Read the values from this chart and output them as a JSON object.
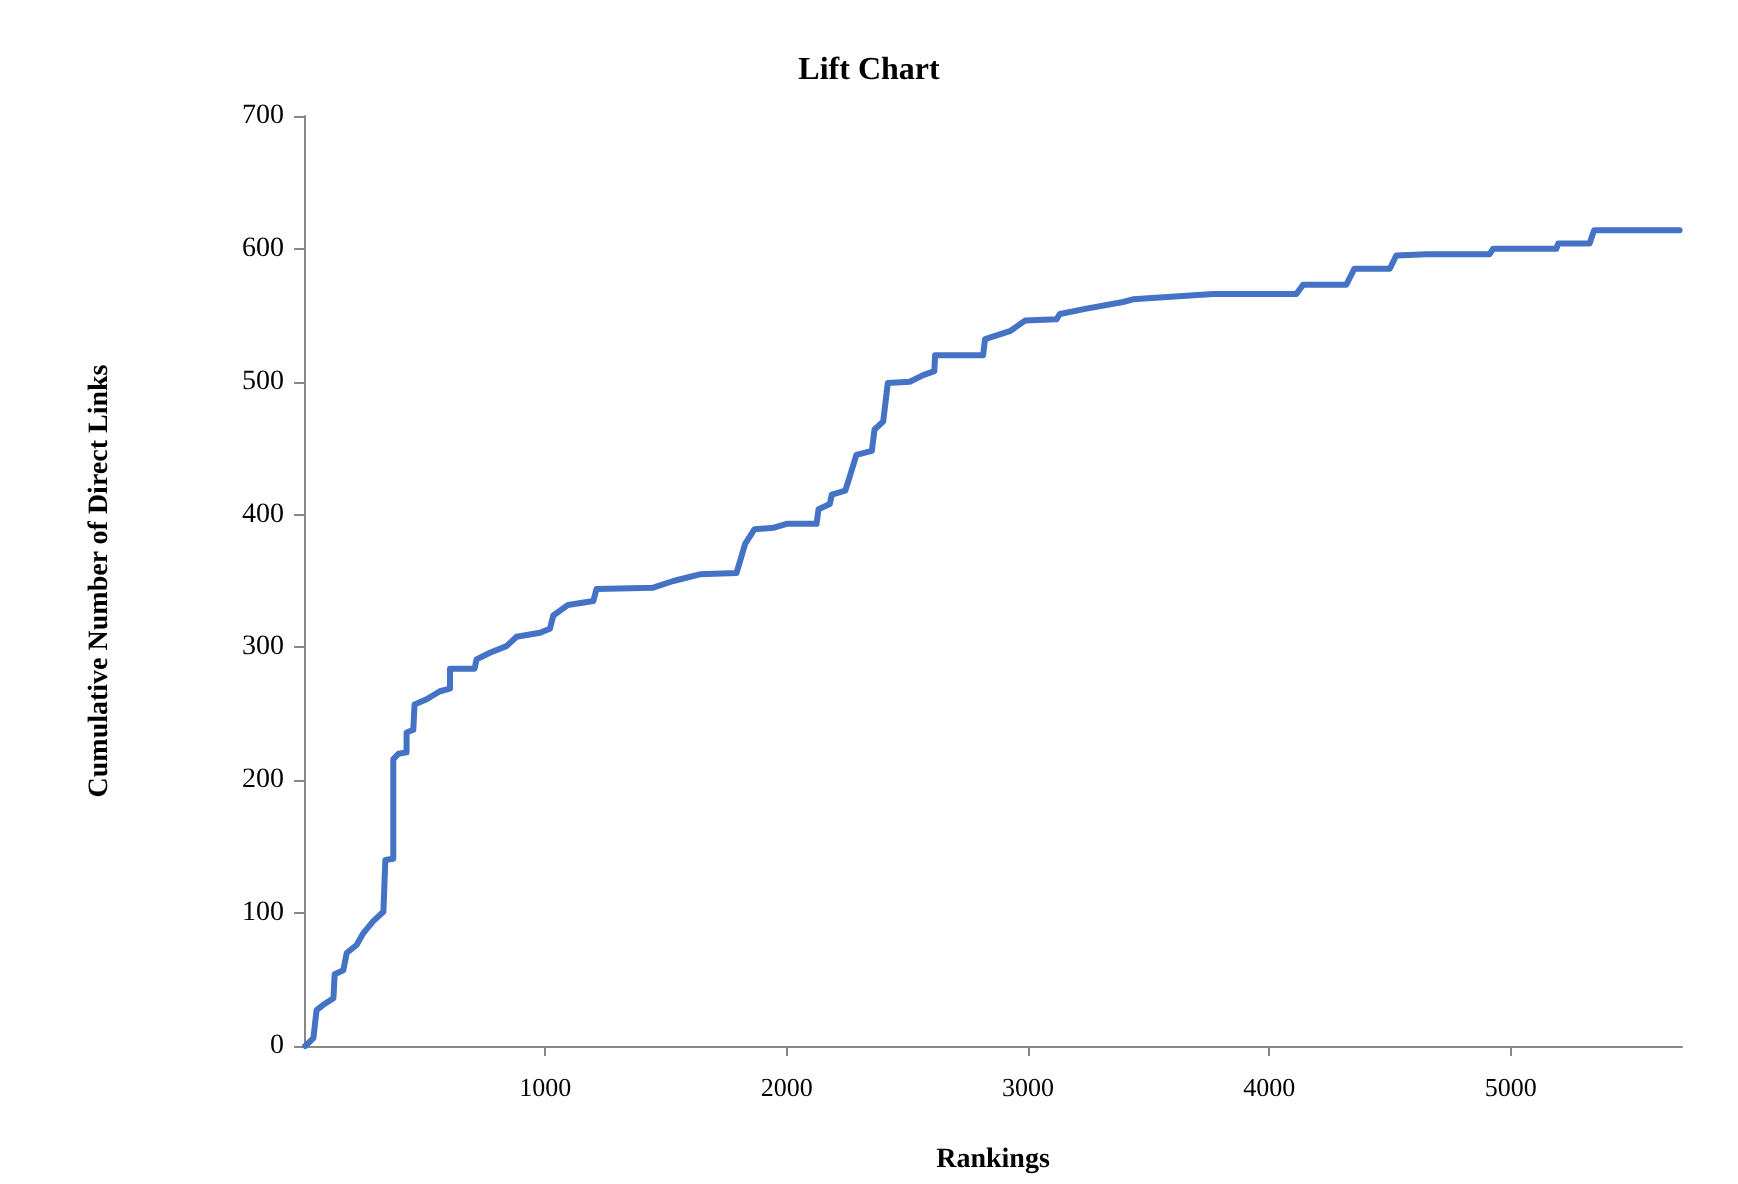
{
  "chart_data": {
    "type": "line",
    "title": "Lift Chart",
    "xlabel": "Rankings",
    "ylabel": "Cumulative Number of Direct Links",
    "xlim": [
      0,
      5710
    ],
    "xticks": [
      1000,
      2000,
      3000,
      4000,
      5000
    ],
    "ylim": [
      0,
      700
    ],
    "yticks": [
      0,
      100,
      200,
      300,
      400,
      500,
      600,
      700
    ],
    "grid": false,
    "marker": "none",
    "line_style": "solid",
    "series": [
      {
        "color": "#4472c4",
        "x": [
          5,
          39,
          52,
          80,
          122,
          127,
          163,
          177,
          218,
          246,
          287,
          329,
          337,
          370,
          370,
          392,
          425,
          425,
          453,
          458,
          508,
          563,
          605,
          605,
          707,
          715,
          770,
          839,
          881,
          978,
          1019,
          1033,
          1094,
          1199,
          1212,
          1447,
          1530,
          1640,
          1792,
          1828,
          1867,
          1944,
          2000,
          2124,
          2132,
          2179,
          2187,
          2243,
          2262,
          2289,
          2353,
          2364,
          2400,
          2419,
          2510,
          2566,
          2612,
          2615,
          2814,
          2822,
          2925,
          2988,
          3118,
          3132,
          3242,
          3394,
          3435,
          3767,
          4112,
          4140,
          4319,
          4352,
          4499,
          4526,
          4650,
          4913,
          4927,
          5189,
          5197,
          5327,
          5346,
          5700
        ],
        "values": [
          0,
          6,
          27,
          31,
          36,
          54,
          57,
          70,
          76,
          85,
          94,
          101,
          140,
          141,
          216,
          220,
          221,
          236,
          238,
          257,
          261,
          267,
          269,
          284,
          284,
          291,
          296,
          301,
          308,
          311,
          314,
          324,
          332,
          335,
          344,
          345,
          350,
          355,
          356,
          378,
          389,
          390,
          393,
          393,
          404,
          408,
          415,
          418,
          429,
          445,
          448,
          464,
          470,
          499,
          500,
          505,
          508,
          520,
          520,
          532,
          538,
          546,
          547,
          551,
          555,
          560,
          562,
          566,
          566,
          573,
          573,
          585,
          585,
          595,
          596,
          596,
          600,
          600,
          604,
          604,
          614,
          614
        ]
      }
    ]
  }
}
